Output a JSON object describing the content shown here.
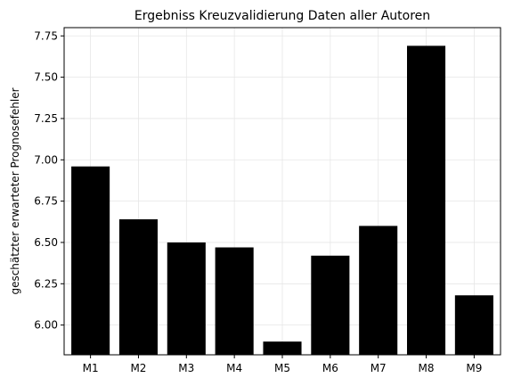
{
  "chart_data": {
    "type": "bar",
    "title": "Ergebniss Kreuzvalidierung Daten aller Autoren",
    "xlabel": "",
    "ylabel": "geschätzter erwarteter Prognosefehler",
    "categories": [
      "M1",
      "M2",
      "M3",
      "M4",
      "M5",
      "M6",
      "M7",
      "M8",
      "M9"
    ],
    "values": [
      6.96,
      6.64,
      6.5,
      6.47,
      5.9,
      6.42,
      6.6,
      7.69,
      6.18
    ],
    "ylim": [
      5.82,
      7.8
    ],
    "yticks": [
      6.0,
      6.25,
      6.5,
      6.75,
      7.0,
      7.25,
      7.5,
      7.75
    ],
    "ytick_labels": [
      "6.00",
      "6.25",
      "6.50",
      "6.75",
      "7.00",
      "7.25",
      "7.50",
      "7.75"
    ],
    "grid": true,
    "bar_color": "#000000",
    "grid_color": "#e6e6e6"
  }
}
